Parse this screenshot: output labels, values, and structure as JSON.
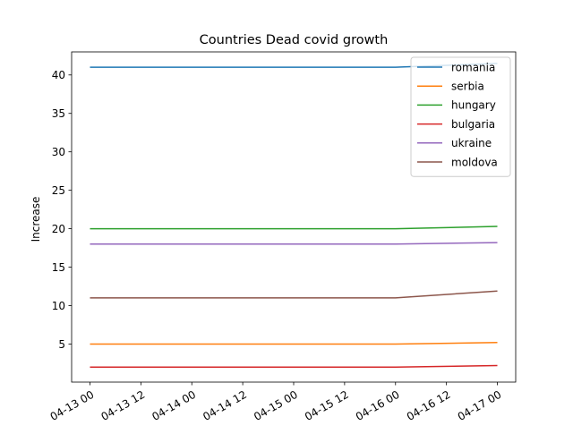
{
  "chart_data": {
    "type": "line",
    "title": "Countries Dead covid growth",
    "xlabel": "",
    "ylabel": "Increase",
    "x": [
      "04-13 00",
      "04-16 00",
      "04-17 00"
    ],
    "x_ticks": [
      "04-13 00",
      "04-13 12",
      "04-14 00",
      "04-14 12",
      "04-15 00",
      "04-15 12",
      "04-16 00",
      "04-16 12",
      "04-17 00"
    ],
    "y_ticks": [
      5,
      10,
      15,
      20,
      25,
      30,
      35,
      40
    ],
    "ylim": [
      0.05,
      43.0
    ],
    "grid": false,
    "legend_position": "top-right",
    "series": [
      {
        "name": "romania",
        "color": "#1f77b4",
        "values": [
          41,
          41,
          41.5
        ]
      },
      {
        "name": "serbia",
        "color": "#ff7f0e",
        "values": [
          5,
          5,
          5.2
        ]
      },
      {
        "name": "hungary",
        "color": "#2ca02c",
        "values": [
          20,
          20,
          20.3
        ]
      },
      {
        "name": "bulgaria",
        "color": "#d62728",
        "values": [
          2,
          2,
          2.2
        ]
      },
      {
        "name": "ukraine",
        "color": "#9467bd",
        "values": [
          18,
          18,
          18.2
        ]
      },
      {
        "name": "moldova",
        "color": "#8c564b",
        "values": [
          11,
          11,
          11.9
        ]
      }
    ]
  }
}
